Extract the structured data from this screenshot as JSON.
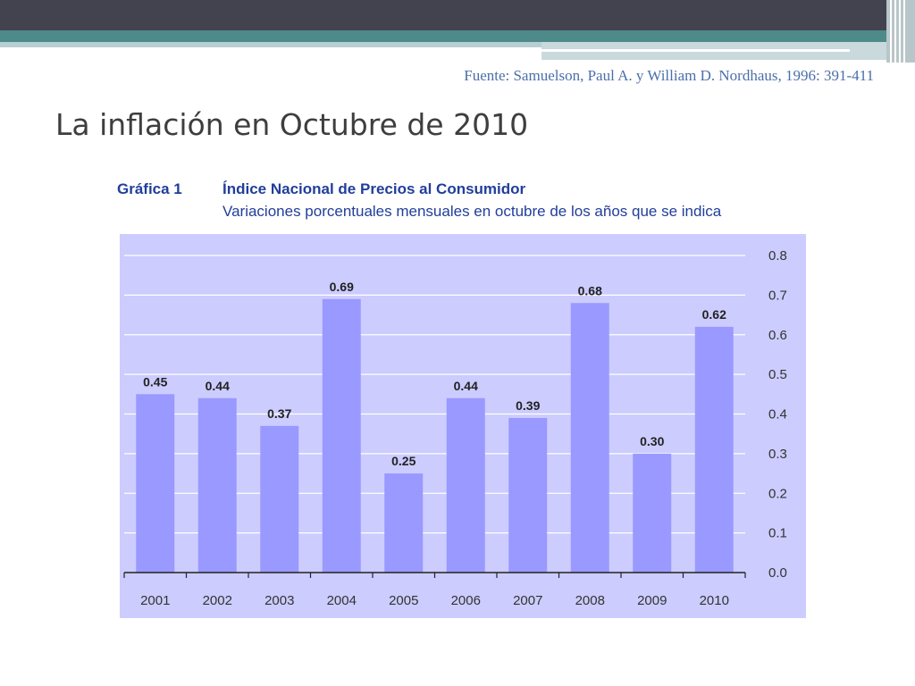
{
  "slide": {
    "source": "Fuente: Samuelson, Paul A. y William D. Nordhaus, 1996: 391-411",
    "title": "La inflación en Octubre de 2010"
  },
  "chart_data": {
    "type": "bar",
    "label": "Gráfica 1",
    "title": "Índice Nacional de Precios al Consumidor",
    "subtitle": "Variaciones porcentuales mensuales en octubre de los años que se indica",
    "categories": [
      "2001",
      "2002",
      "2003",
      "2004",
      "2005",
      "2006",
      "2007",
      "2008",
      "2009",
      "2010"
    ],
    "values": [
      0.45,
      0.44,
      0.37,
      0.69,
      0.25,
      0.44,
      0.39,
      0.68,
      0.3,
      0.62
    ],
    "value_labels": [
      "0.45",
      "0.44",
      "0.37",
      "0.69",
      "0.25",
      "0.44",
      "0.39",
      "0.68",
      "0.30",
      "0.62"
    ],
    "yticks": [
      "0.0",
      "0.1",
      "0.2",
      "0.3",
      "0.4",
      "0.5",
      "0.6",
      "0.7",
      "0.8"
    ],
    "ylim": [
      0,
      0.8
    ],
    "y_axis_side": "right",
    "grid": true,
    "colors": {
      "background": "#ccccff",
      "bar": "#9999ff",
      "grid": "#ffffff"
    }
  }
}
